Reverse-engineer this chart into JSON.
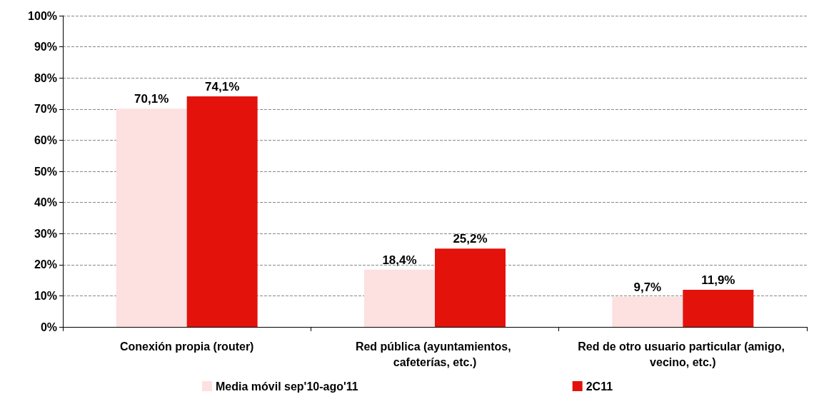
{
  "chart_data": {
    "type": "bar",
    "categories": [
      "Conexión propia (router)",
      "Red pública (ayuntamientos, cafeterías, etc.)",
      "Red de otro usuario particular (amigo, vecino, etc.)"
    ],
    "series": [
      {
        "name": "Media móvil sep'10-ago'11",
        "color": "#fde0e0",
        "values": [
          70.1,
          18.4,
          9.7
        ],
        "value_labels": [
          "70,1%",
          "18,4%",
          "9,7%"
        ]
      },
      {
        "name": "2C11",
        "color": "#e3120b",
        "values": [
          74.1,
          25.2,
          11.9
        ],
        "value_labels": [
          "74,1%",
          "25,2%",
          "11,9%"
        ]
      }
    ],
    "ylim": [
      0,
      100
    ],
    "yticks": [
      {
        "value": 0,
        "label": "0%"
      },
      {
        "value": 10,
        "label": "10%"
      },
      {
        "value": 20,
        "label": "20%"
      },
      {
        "value": 30,
        "label": "30%"
      },
      {
        "value": 40,
        "label": "40%"
      },
      {
        "value": 50,
        "label": "50%"
      },
      {
        "value": 60,
        "label": "60%"
      },
      {
        "value": 70,
        "label": "70%"
      },
      {
        "value": 80,
        "label": "80%"
      },
      {
        "value": 90,
        "label": "90%"
      },
      {
        "value": 100,
        "label": "100%"
      }
    ],
    "grid": "y",
    "legend": "bottom"
  }
}
